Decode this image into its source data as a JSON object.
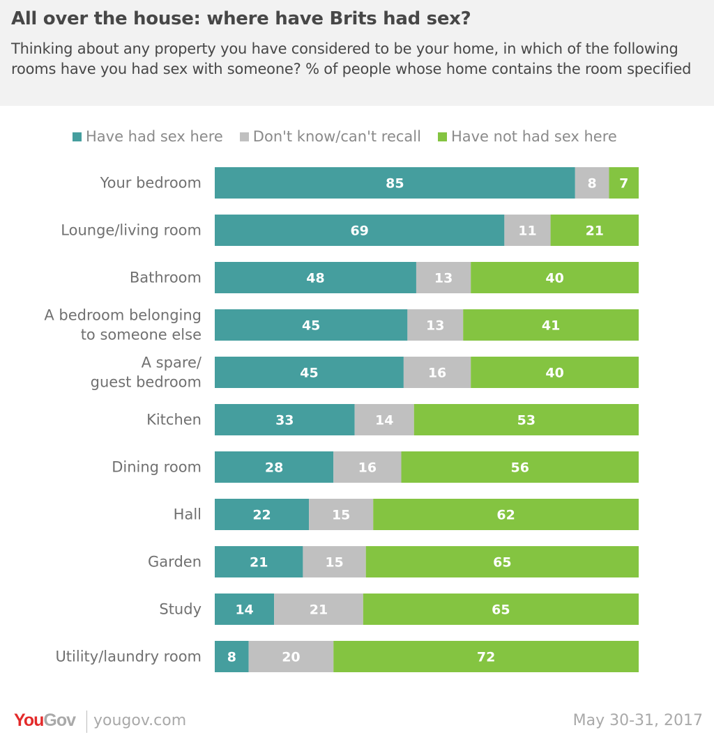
{
  "header": {
    "title": "All over the house: where have Brits had sex?",
    "subtitle": "Thinking about any property you have considered to be your home, in which of the following rooms have you had sex with someone? % of people whose home contains the room specified"
  },
  "chart_data": {
    "type": "bar",
    "orientation": "horizontal",
    "stacked": true,
    "title": "All over the house: where have Brits had sex?",
    "categories": [
      [
        "Your bedroom"
      ],
      [
        "Lounge/living room"
      ],
      [
        "Bathroom"
      ],
      [
        "A bedroom belonging",
        "to someone else"
      ],
      [
        "A spare/",
        "guest bedroom"
      ],
      [
        "Kitchen"
      ],
      [
        "Dining room"
      ],
      [
        "Hall"
      ],
      [
        "Garden"
      ],
      [
        "Study"
      ],
      [
        "Utility/laundry room"
      ]
    ],
    "series": [
      {
        "name": "Have had sex here",
        "color": "#459e9e",
        "values": [
          85,
          69,
          48,
          45,
          45,
          33,
          28,
          22,
          21,
          14,
          8
        ]
      },
      {
        "name": "Don't know/can't recall",
        "color": "#c0c0c0",
        "values": [
          8,
          11,
          13,
          13,
          16,
          14,
          16,
          15,
          15,
          21,
          20
        ]
      },
      {
        "name": "Have not had sex here",
        "color": "#84c441",
        "values": [
          7,
          21,
          40,
          41,
          40,
          53,
          56,
          62,
          65,
          65,
          72
        ]
      }
    ],
    "legend_position": "top",
    "unit": "%"
  },
  "footer": {
    "logo_you": "You",
    "logo_gov": "Gov",
    "site": "yougov.com",
    "date": "May 30-31, 2017"
  }
}
